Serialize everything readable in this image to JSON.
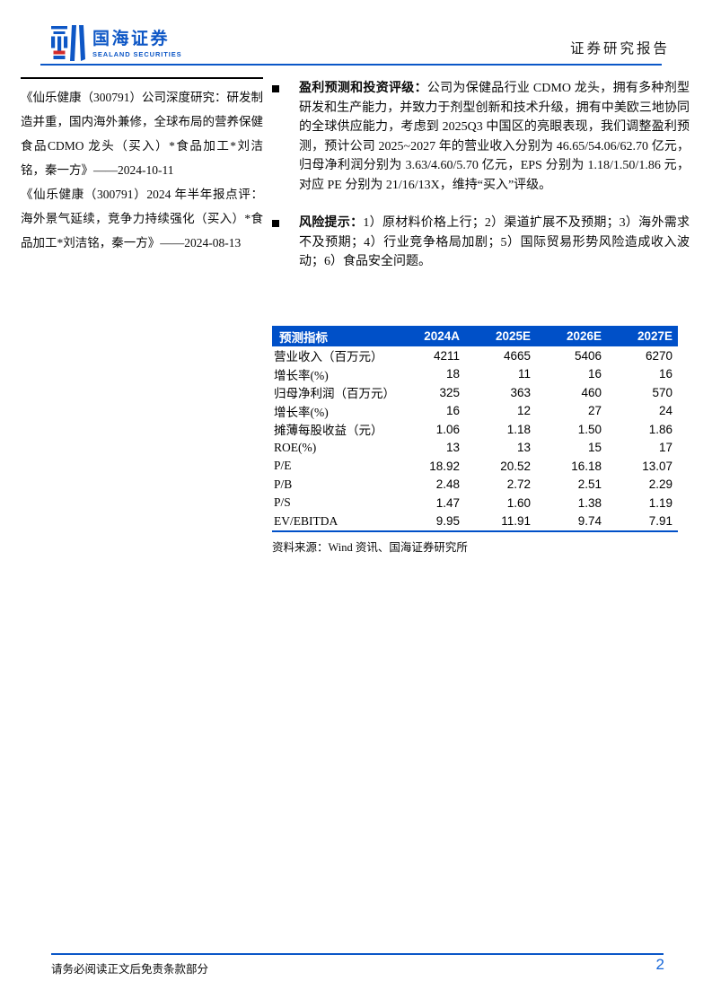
{
  "header": {
    "brand_cn": "国海证券",
    "brand_en": "SEALAND SECURITIES",
    "doc_type": "证券研究报告"
  },
  "sidebar": {
    "reports": [
      "《仙乐健康（300791）公司深度研究：研发制造并重，国内海外兼修，全球布局的营养保健食品CDMO 龙头（买入）*食品加工*刘洁铭，秦一方》——2024-10-11",
      "《仙乐健康（300791）2024 年半年报点评：海外景气延续，竞争力持续强化（买入）*食品加工*刘洁铭，秦一方》——2024-08-13"
    ]
  },
  "main": {
    "bullets": [
      {
        "label": "盈利预测和投资评级：",
        "text": "公司为保健品行业 CDMO 龙头，拥有多种剂型研发和生产能力，并致力于剂型创新和技术升级，拥有中美欧三地协同的全球供应能力，考虑到 2025Q3 中国区的亮眼表现，我们调整盈利预测，预计公司 2025~2027 年的营业收入分别为 46.65/54.06/62.70 亿元，归母净利润分别为 3.63/4.60/5.70 亿元，EPS 分别为 1.18/1.50/1.86 元，对应 PE 分别为 21/16/13X，维持“买入”评级。"
      },
      {
        "label": "风险提示：",
        "text": "1）原材料价格上行；2）渠道扩展不及预期；3）海外需求不及预期；4）行业竞争格局加剧；5）国际贸易形势风险造成收入波动；6）食品安全问题。"
      }
    ],
    "table": {
      "header": [
        "预测指标",
        "2024A",
        "2025E",
        "2026E",
        "2027E"
      ],
      "rows": [
        [
          "营业收入（百万元）",
          "4211",
          "4665",
          "5406",
          "6270"
        ],
        [
          "增长率(%)",
          "18",
          "11",
          "16",
          "16"
        ],
        [
          "归母净利润（百万元）",
          "325",
          "363",
          "460",
          "570"
        ],
        [
          "增长率(%)",
          "16",
          "12",
          "27",
          "24"
        ],
        [
          "摊薄每股收益（元）",
          "1.06",
          "1.18",
          "1.50",
          "1.86"
        ],
        [
          "ROE(%)",
          "13",
          "13",
          "15",
          "17"
        ],
        [
          "P/E",
          "18.92",
          "20.52",
          "16.18",
          "13.07"
        ],
        [
          "P/B",
          "2.48",
          "2.72",
          "2.51",
          "2.29"
        ],
        [
          "P/S",
          "1.47",
          "1.60",
          "1.38",
          "1.19"
        ],
        [
          "EV/EBITDA",
          "9.95",
          "11.91",
          "9.74",
          "7.91"
        ]
      ]
    },
    "source": "资料来源：Wind 资讯、国海证券研究所"
  },
  "footer": {
    "disclaimer": "请务必阅读正文后免责条款部分",
    "page_number": "2"
  },
  "colors": {
    "brand_blue": "#0E57C6",
    "table_header_blue": "#0050C8",
    "rule_blue": "#0B57C8",
    "logo_red": "#D42B2B",
    "page_number_blue": "#1565D8"
  }
}
